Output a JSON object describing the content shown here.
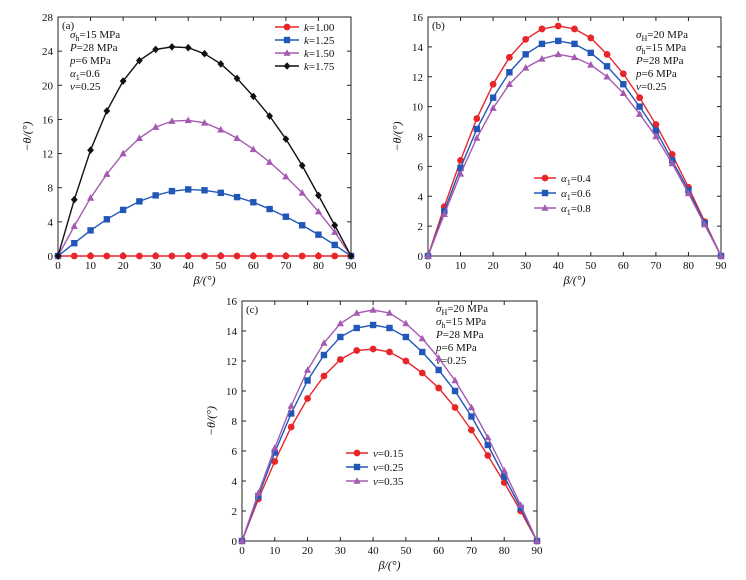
{
  "chart_data": [
    {
      "id": "a",
      "type": "line",
      "panel_label": "(a)",
      "xlabel": "β/(°)",
      "ylabel": "−θ/(°)",
      "xlim": [
        0,
        90
      ],
      "ylim": [
        0,
        28
      ],
      "xticks": [
        0,
        10,
        20,
        30,
        40,
        50,
        60,
        70,
        80,
        90
      ],
      "yticks": [
        0,
        4,
        8,
        12,
        16,
        20,
        24,
        28
      ],
      "legend_position": "top-right",
      "params": [
        "σ_h=15 MPa",
        "P=28 MPa",
        "p=6 MPa",
        "α_1=0.6",
        "v=0.25"
      ],
      "x": [
        0,
        5,
        10,
        15,
        20,
        25,
        30,
        35,
        40,
        45,
        50,
        55,
        60,
        65,
        70,
        75,
        80,
        85,
        90
      ],
      "series": [
        {
          "name": "k=1.00",
          "color": "#e8262a",
          "marker": "circle",
          "values": [
            0,
            0,
            0,
            0,
            0,
            0,
            0,
            0,
            0,
            0,
            0,
            0,
            0,
            0,
            0,
            0,
            0,
            0,
            0
          ]
        },
        {
          "name": "k=1.25",
          "color": "#2158b8",
          "marker": "square",
          "values": [
            0,
            1.5,
            3.0,
            4.3,
            5.4,
            6.4,
            7.1,
            7.6,
            7.8,
            7.7,
            7.4,
            6.9,
            6.3,
            5.5,
            4.6,
            3.6,
            2.5,
            1.3,
            0
          ]
        },
        {
          "name": "k=1.50",
          "color": "#a45ab0",
          "marker": "triangle",
          "values": [
            0,
            3.5,
            6.8,
            9.6,
            12.0,
            13.8,
            15.1,
            15.8,
            15.9,
            15.6,
            14.8,
            13.8,
            12.5,
            11.0,
            9.3,
            7.4,
            5.2,
            2.8,
            0
          ]
        },
        {
          "name": "k=1.75",
          "color": "#111111",
          "marker": "diamond",
          "values": [
            0,
            6.6,
            12.4,
            17.0,
            20.5,
            22.9,
            24.2,
            24.5,
            24.4,
            23.7,
            22.5,
            20.8,
            18.7,
            16.4,
            13.7,
            10.6,
            7.1,
            3.6,
            0
          ]
        }
      ]
    },
    {
      "id": "b",
      "type": "line",
      "panel_label": "(b)",
      "xlabel": "β/(°)",
      "ylabel": "−θ/(°)",
      "xlim": [
        0,
        90
      ],
      "ylim": [
        0,
        16
      ],
      "xticks": [
        0,
        10,
        20,
        30,
        40,
        50,
        60,
        70,
        80,
        90
      ],
      "yticks": [
        0,
        2,
        4,
        6,
        8,
        10,
        12,
        14,
        16
      ],
      "legend_position": "center",
      "params": [
        "σ_H=20 MPa",
        "σ_h=15 MPa",
        "P=28 MPa",
        "p=6 MPa",
        "v=0.25"
      ],
      "x": [
        0,
        5,
        10,
        15,
        20,
        25,
        30,
        35,
        40,
        45,
        50,
        55,
        60,
        65,
        70,
        75,
        80,
        85,
        90
      ],
      "series": [
        {
          "name": "α_1=0.4",
          "color": "#e8262a",
          "marker": "circle",
          "values": [
            0,
            3.3,
            6.4,
            9.2,
            11.5,
            13.3,
            14.5,
            15.2,
            15.4,
            15.2,
            14.6,
            13.5,
            12.2,
            10.6,
            8.8,
            6.8,
            4.6,
            2.3,
            0
          ]
        },
        {
          "name": "α_1=0.6",
          "color": "#2158b8",
          "marker": "square",
          "values": [
            0,
            3.0,
            5.9,
            8.5,
            10.6,
            12.3,
            13.5,
            14.2,
            14.4,
            14.2,
            13.6,
            12.7,
            11.5,
            10.0,
            8.4,
            6.4,
            4.4,
            2.2,
            0
          ]
        },
        {
          "name": "α_1=0.8",
          "color": "#a45ab0",
          "marker": "triangle",
          "values": [
            0,
            2.8,
            5.5,
            7.9,
            9.9,
            11.5,
            12.6,
            13.2,
            13.5,
            13.3,
            12.8,
            12.0,
            10.9,
            9.5,
            8.0,
            6.2,
            4.2,
            2.1,
            0
          ]
        }
      ]
    },
    {
      "id": "c",
      "type": "line",
      "panel_label": "(c)",
      "xlabel": "β/(°)",
      "ylabel": "−θ/(°)",
      "xlim": [
        0,
        90
      ],
      "ylim": [
        0,
        16
      ],
      "xticks": [
        0,
        10,
        20,
        30,
        40,
        50,
        60,
        70,
        80,
        90
      ],
      "yticks": [
        0,
        2,
        4,
        6,
        8,
        10,
        12,
        14,
        16
      ],
      "legend_position": "bottom-left",
      "params": [
        "σ_H=20 MPa",
        "σ_h=15 MPa",
        "P=28 MPa",
        "p=6 MPa",
        "v=0.25"
      ],
      "x": [
        0,
        5,
        10,
        15,
        20,
        25,
        30,
        35,
        40,
        45,
        50,
        55,
        60,
        65,
        70,
        75,
        80,
        85,
        90
      ],
      "series": [
        {
          "name": "v=0.15",
          "color": "#e8262a",
          "marker": "circle",
          "values": [
            0,
            2.8,
            5.3,
            7.6,
            9.5,
            11.0,
            12.1,
            12.7,
            12.8,
            12.6,
            12.0,
            11.2,
            10.2,
            8.9,
            7.4,
            5.7,
            3.9,
            2.0,
            0
          ]
        },
        {
          "name": "v=0.25",
          "color": "#2158b8",
          "marker": "square",
          "values": [
            0,
            3.0,
            5.9,
            8.5,
            10.7,
            12.4,
            13.6,
            14.2,
            14.4,
            14.2,
            13.6,
            12.6,
            11.4,
            10.0,
            8.3,
            6.4,
            4.3,
            2.2,
            0
          ]
        },
        {
          "name": "v=0.35",
          "color": "#a45ab0",
          "marker": "triangle",
          "values": [
            0,
            3.2,
            6.2,
            9.0,
            11.4,
            13.2,
            14.5,
            15.2,
            15.4,
            15.2,
            14.5,
            13.5,
            12.2,
            10.7,
            8.9,
            6.9,
            4.7,
            2.4,
            0
          ]
        }
      ]
    }
  ]
}
